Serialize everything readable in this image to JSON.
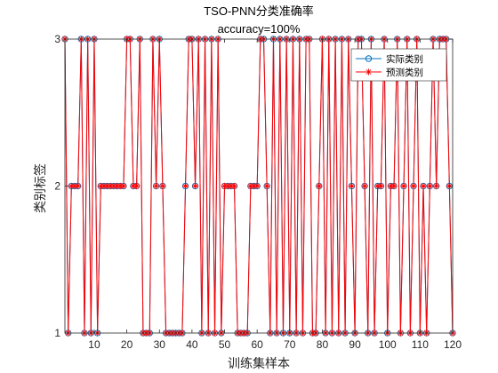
{
  "chart_data": {
    "type": "line",
    "title": "TSO-PNN分类准确率",
    "subtitle": "accuracy=100%",
    "xlabel": "训练集样本",
    "ylabel": "类别标签",
    "xlim": [
      1,
      120
    ],
    "ylim": [
      1,
      3
    ],
    "x_ticks": [
      10,
      20,
      30,
      40,
      50,
      60,
      70,
      80,
      90,
      100,
      110,
      120
    ],
    "y_ticks": [
      1,
      2,
      3
    ],
    "grid": false,
    "legend_position": "top-right",
    "x": [
      1,
      2,
      3,
      4,
      5,
      6,
      7,
      8,
      9,
      10,
      11,
      12,
      13,
      14,
      15,
      16,
      17,
      18,
      19,
      20,
      21,
      22,
      23,
      24,
      25,
      26,
      27,
      28,
      29,
      30,
      31,
      32,
      33,
      34,
      35,
      36,
      37,
      38,
      39,
      40,
      41,
      42,
      43,
      44,
      45,
      46,
      47,
      48,
      49,
      50,
      51,
      52,
      53,
      54,
      55,
      56,
      57,
      58,
      59,
      60,
      61,
      62,
      63,
      64,
      65,
      66,
      67,
      68,
      69,
      70,
      71,
      72,
      73,
      74,
      75,
      76,
      77,
      78,
      79,
      80,
      81,
      82,
      83,
      84,
      85,
      86,
      87,
      88,
      89,
      90,
      91,
      92,
      93,
      94,
      95,
      96,
      97,
      98,
      99,
      100,
      101,
      102,
      103,
      104,
      105,
      106,
      107,
      108,
      109,
      110,
      111,
      112,
      113,
      114,
      115,
      116,
      117,
      118,
      119,
      120
    ],
    "series": [
      {
        "name": "实际类别",
        "color": "#0072BD",
        "marker": "circle",
        "values": [
          3,
          1,
          2,
          2,
          2,
          3,
          1,
          3,
          1,
          3,
          1,
          2,
          2,
          2,
          2,
          2,
          2,
          2,
          2,
          3,
          3,
          2,
          2,
          3,
          1,
          1,
          1,
          3,
          2,
          3,
          2,
          1,
          1,
          1,
          1,
          1,
          1,
          2,
          3,
          3,
          2,
          3,
          1,
          3,
          1,
          3,
          1,
          3,
          1,
          2,
          2,
          2,
          2,
          1,
          1,
          1,
          1,
          2,
          2,
          2,
          3,
          3,
          2,
          1,
          3,
          1,
          3,
          1,
          3,
          1,
          3,
          1,
          3,
          1,
          3,
          3,
          1,
          1,
          2,
          3,
          1,
          3,
          1,
          3,
          1,
          3,
          1,
          3,
          2,
          1,
          3,
          3,
          2,
          1,
          3,
          1,
          2,
          2,
          3,
          1,
          2,
          2,
          3,
          1,
          2,
          3,
          1,
          2,
          3,
          1,
          2,
          1,
          2,
          3,
          2,
          3,
          3,
          3,
          2,
          1
        ]
      },
      {
        "name": "预测类别",
        "color": "#FF0000",
        "marker": "star",
        "values": [
          3,
          1,
          2,
          2,
          2,
          3,
          1,
          3,
          1,
          3,
          1,
          2,
          2,
          2,
          2,
          2,
          2,
          2,
          2,
          3,
          3,
          2,
          2,
          3,
          1,
          1,
          1,
          3,
          2,
          3,
          2,
          1,
          1,
          1,
          1,
          1,
          1,
          2,
          3,
          3,
          2,
          3,
          1,
          3,
          1,
          3,
          1,
          3,
          1,
          2,
          2,
          2,
          2,
          1,
          1,
          1,
          1,
          2,
          2,
          2,
          3,
          3,
          2,
          1,
          3,
          1,
          3,
          1,
          3,
          1,
          3,
          1,
          3,
          1,
          3,
          3,
          1,
          1,
          2,
          3,
          1,
          3,
          1,
          3,
          1,
          3,
          1,
          3,
          2,
          1,
          3,
          3,
          2,
          1,
          3,
          1,
          2,
          2,
          3,
          1,
          2,
          2,
          3,
          1,
          2,
          3,
          1,
          2,
          3,
          1,
          2,
          1,
          2,
          3,
          2,
          3,
          3,
          3,
          2,
          1
        ]
      }
    ]
  }
}
